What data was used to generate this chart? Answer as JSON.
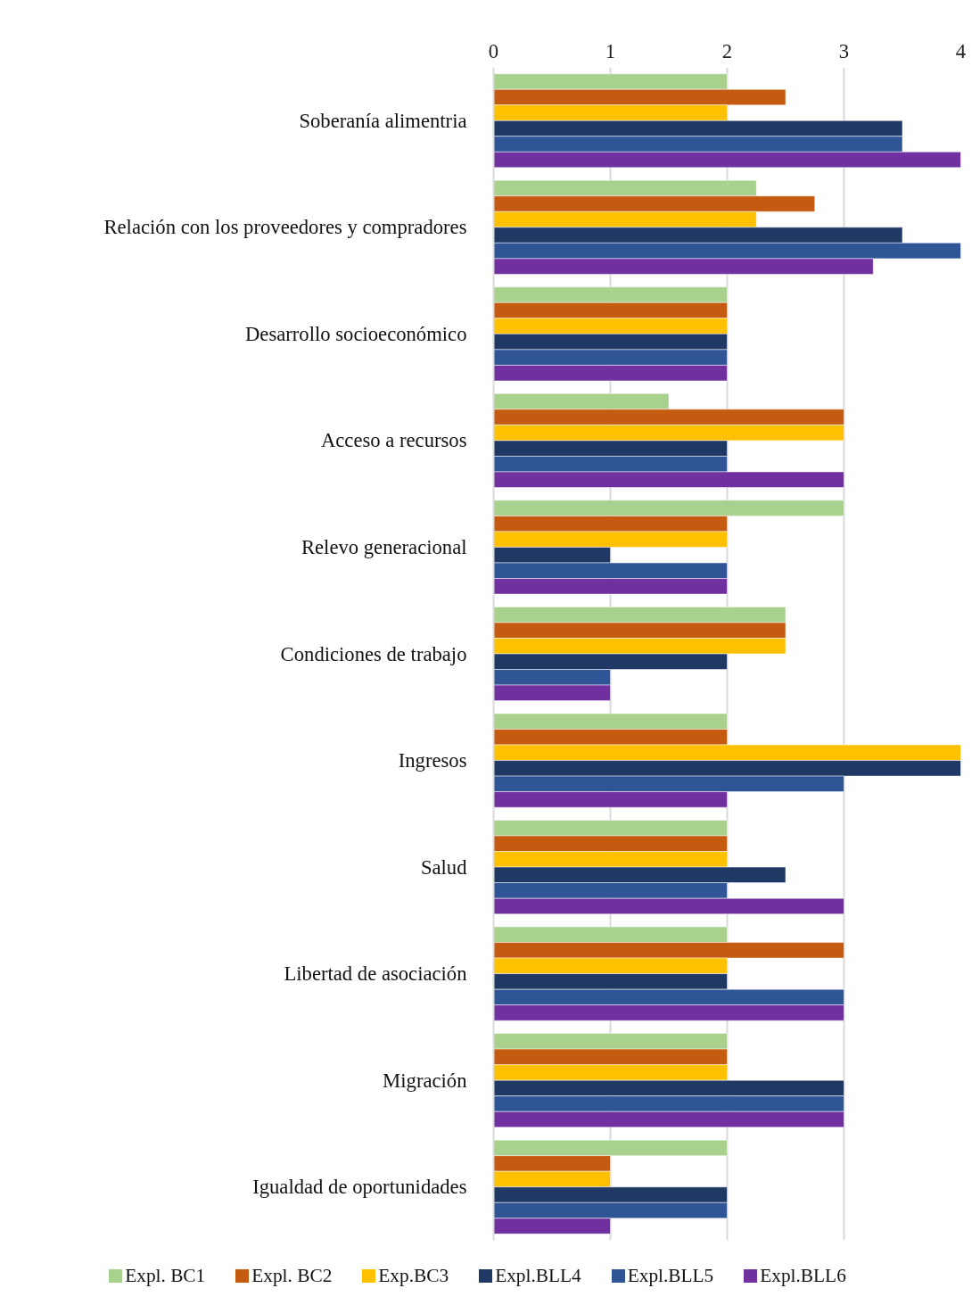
{
  "chart_data": {
    "type": "bar",
    "orientation": "horizontal",
    "categories": [
      "Soberanía alimentria",
      "Relación con los proveedores y compradores",
      "Desarrollo socioeconómico",
      "Acceso a recursos",
      "Relevo generacional",
      "Condiciones de trabajo",
      "Ingresos",
      "Salud",
      "Libertad de asociación",
      "Migración",
      "Igualdad de oportunidades"
    ],
    "series": [
      {
        "name": "Expl. BC1",
        "color": "#a9d18e",
        "values": [
          2,
          2.25,
          2,
          1.5,
          3,
          2.5,
          2,
          2,
          2,
          2,
          2
        ]
      },
      {
        "name": "Expl. BC2",
        "color": "#c55a11",
        "values": [
          2.5,
          2.75,
          2,
          3,
          2,
          2.5,
          2,
          2,
          3,
          2,
          1
        ]
      },
      {
        "name": "Exp.BC3",
        "color": "#ffc000",
        "values": [
          2,
          2.25,
          2,
          3,
          2,
          2.5,
          4,
          2,
          2,
          2,
          1
        ]
      },
      {
        "name": "Expl.BLL4",
        "color": "#203864",
        "values": [
          3.5,
          3.5,
          2,
          2,
          1,
          2,
          4,
          2.5,
          2,
          3,
          2
        ]
      },
      {
        "name": "Expl.BLL5",
        "color": "#2f5597",
        "values": [
          3.5,
          4,
          2,
          2,
          2,
          1,
          3,
          2,
          3,
          3,
          2
        ]
      },
      {
        "name": "Expl.BLL6",
        "color": "#7030a0",
        "values": [
          4,
          3.25,
          2,
          3,
          2,
          1,
          2,
          3,
          3,
          3,
          1
        ]
      }
    ],
    "xlim": [
      0,
      4
    ],
    "xticks": [
      0,
      1,
      2,
      3,
      4
    ],
    "grid": "x",
    "legend": "bottom"
  }
}
